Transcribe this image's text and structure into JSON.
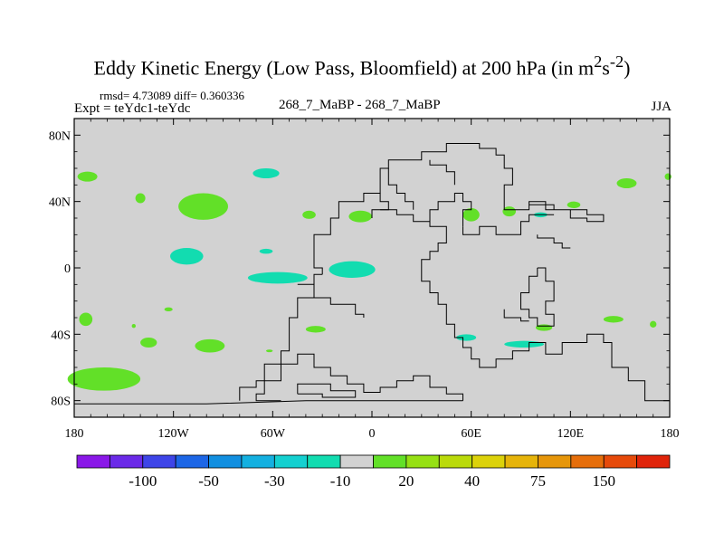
{
  "chart_data": {
    "type": "heatmap",
    "title": "Eddy Kinetic Energy (Low Pass, Bloomfield) at 200 hPa (in m",
    "title_units": {
      "sup1": "2",
      "mid": "s",
      "sup2": "-2",
      "close": ")"
    },
    "stats_line": "rmsd= 4.73089 diff= 0.360336",
    "expt_label": "Expt = teYdc1-teYdc",
    "center_label": "268_7_MaBP - 268_7_MaBP",
    "season": "JJA",
    "x_ticks": [
      {
        "value": -180,
        "label": "180"
      },
      {
        "value": -120,
        "label": "120W"
      },
      {
        "value": -60,
        "label": "60W"
      },
      {
        "value": 0,
        "label": "0"
      },
      {
        "value": 60,
        "label": "60E"
      },
      {
        "value": 120,
        "label": "120E"
      },
      {
        "value": 180,
        "label": "180"
      }
    ],
    "y_ticks": [
      {
        "value": 80,
        "label": "80N"
      },
      {
        "value": 40,
        "label": "40N"
      },
      {
        "value": 0,
        "label": "0"
      },
      {
        "value": -40,
        "label": "40S"
      },
      {
        "value": -80,
        "label": "80S"
      }
    ],
    "xlim": [
      -180,
      180
    ],
    "ylim": [
      -90,
      90
    ],
    "background_color": "#d2d2d2",
    "colorbar": {
      "colors": [
        "#8a18e8",
        "#6b2ae8",
        "#3e45e8",
        "#1d66e6",
        "#128fe0",
        "#14b0e0",
        "#14d0d0",
        "#12dcb0",
        "#d2d2d2",
        "#62e028",
        "#96e014",
        "#bada0a",
        "#dcd20a",
        "#e6b40a",
        "#e6960a",
        "#e66e0a",
        "#e64a0a",
        "#e0240a"
      ],
      "labels": [
        {
          "boundary": 2,
          "label": "-100"
        },
        {
          "boundary": 4,
          "label": "-50"
        },
        {
          "boundary": 6,
          "label": "-30"
        },
        {
          "boundary": 8,
          "label": "-10"
        },
        {
          "boundary": 10,
          "label": "20"
        },
        {
          "boundary": 12,
          "label": "40"
        },
        {
          "boundary": 14,
          "label": "75"
        },
        {
          "boundary": 16,
          "label": "150"
        }
      ]
    },
    "anomaly_patches": [
      {
        "lon": -172,
        "lat": 55,
        "rlon": 6,
        "rlat": 3,
        "color": "#62e028"
      },
      {
        "lon": -140,
        "lat": 42,
        "rlon": 3,
        "rlat": 3,
        "color": "#62e028"
      },
      {
        "lon": -102,
        "lat": 37,
        "rlon": 15,
        "rlat": 8,
        "color": "#62e028"
      },
      {
        "lon": -64,
        "lat": 57,
        "rlon": 8,
        "rlat": 3,
        "color": "#12dcb0"
      },
      {
        "lon": -38,
        "lat": 32,
        "rlon": 4,
        "rlat": 2.5,
        "color": "#62e028"
      },
      {
        "lon": -7,
        "lat": 31,
        "rlon": 7,
        "rlat": 3.5,
        "color": "#62e028"
      },
      {
        "lon": -112,
        "lat": 7,
        "rlon": 10,
        "rlat": 5,
        "color": "#12dcb0"
      },
      {
        "lon": -64,
        "lat": 10,
        "rlon": 4,
        "rlat": 1.5,
        "color": "#12dcb0"
      },
      {
        "lon": -57,
        "lat": -6,
        "rlon": 18,
        "rlat": 3.5,
        "color": "#12dcb0"
      },
      {
        "lon": -12,
        "lat": -1,
        "rlon": 14,
        "rlat": 5,
        "color": "#12dcb0"
      },
      {
        "lon": -173,
        "lat": -31,
        "rlon": 4,
        "rlat": 4,
        "color": "#62e028"
      },
      {
        "lon": -135,
        "lat": -45,
        "rlon": 5,
        "rlat": 3,
        "color": "#62e028"
      },
      {
        "lon": -98,
        "lat": -47,
        "rlon": 9,
        "rlat": 4,
        "color": "#62e028"
      },
      {
        "lon": -123,
        "lat": -25,
        "rlon": 2.5,
        "rlat": 1.2,
        "color": "#62e028"
      },
      {
        "lon": -144,
        "lat": -35,
        "rlon": 1.2,
        "rlat": 1.2,
        "color": "#62e028"
      },
      {
        "lon": -162,
        "lat": -67,
        "rlon": 22,
        "rlat": 7,
        "color": "#62e028"
      },
      {
        "lon": -34,
        "lat": -37,
        "rlon": 6,
        "rlat": 2,
        "color": "#62e028"
      },
      {
        "lon": -62,
        "lat": -50,
        "rlon": 2,
        "rlat": 0.8,
        "color": "#62e028"
      },
      {
        "lon": 57,
        "lat": -42,
        "rlon": 6,
        "rlat": 2,
        "color": "#12dcb0"
      },
      {
        "lon": 92,
        "lat": -46,
        "rlon": 12,
        "rlat": 2,
        "color": "#12dcb0"
      },
      {
        "lon": 104,
        "lat": -36,
        "rlon": 5,
        "rlat": 2,
        "color": "#62e028"
      },
      {
        "lon": 60,
        "lat": 32,
        "rlon": 5,
        "rlat": 4,
        "color": "#62e028"
      },
      {
        "lon": 83,
        "lat": 34,
        "rlon": 4,
        "rlat": 3,
        "color": "#62e028"
      },
      {
        "lon": 102,
        "lat": 32,
        "rlon": 4,
        "rlat": 1.5,
        "color": "#12dcb0"
      },
      {
        "lon": 122,
        "lat": 38,
        "rlon": 4,
        "rlat": 2,
        "color": "#62e028"
      },
      {
        "lon": 146,
        "lat": -31,
        "rlon": 6,
        "rlat": 2,
        "color": "#62e028"
      },
      {
        "lon": 170,
        "lat": -34,
        "rlon": 2,
        "rlat": 2,
        "color": "#62e028"
      },
      {
        "lon": 154,
        "lat": 51,
        "rlon": 6,
        "rlat": 3,
        "color": "#62e028"
      },
      {
        "lon": 179,
        "lat": 55,
        "rlon": 2,
        "rlat": 2,
        "color": "#62e028"
      }
    ],
    "outlines": [
      [
        [
          -80,
          -80
        ],
        [
          -80,
          -72
        ],
        [
          -70,
          -72
        ],
        [
          -70,
          -68
        ],
        [
          -55,
          -68
        ],
        [
          -55,
          -58
        ],
        [
          -45,
          -58
        ],
        [
          -45,
          -52
        ],
        [
          -35,
          -52
        ],
        [
          -35,
          -60
        ],
        [
          -25,
          -60
        ],
        [
          -25,
          -65
        ],
        [
          -15,
          -65
        ],
        [
          -15,
          -70
        ],
        [
          -5,
          -70
        ],
        [
          -5,
          -75
        ],
        [
          5,
          -75
        ],
        [
          5,
          -72
        ],
        [
          15,
          -72
        ],
        [
          15,
          -68
        ],
        [
          25,
          -68
        ],
        [
          25,
          -65
        ],
        [
          35,
          -65
        ],
        [
          35,
          -72
        ],
        [
          45,
          -72
        ],
        [
          45,
          -76
        ],
        [
          55,
          -76
        ],
        [
          55,
          -80
        ]
      ],
      [
        [
          -180,
          -82
        ],
        [
          -100,
          -82
        ],
        [
          -40,
          -80
        ],
        [
          0,
          -80
        ],
        [
          55,
          -80
        ]
      ],
      [
        [
          -45,
          -76
        ],
        [
          -45,
          -70
        ],
        [
          -25,
          -70
        ],
        [
          -25,
          -74
        ],
        [
          -10,
          -74
        ],
        [
          -10,
          -78
        ],
        [
          -30,
          -78
        ],
        [
          -30,
          -76
        ],
        [
          -45,
          -76
        ]
      ],
      [
        [
          -30,
          -4
        ],
        [
          -35,
          -4
        ],
        [
          -35,
          -18
        ],
        [
          -45,
          -18
        ],
        [
          -45,
          -30
        ],
        [
          -50,
          -30
        ],
        [
          -50,
          -50
        ],
        [
          -55,
          -50
        ],
        [
          -55,
          -58
        ],
        [
          -65,
          -58
        ],
        [
          -65,
          -76
        ],
        [
          -70,
          -76
        ],
        [
          -70,
          -80
        ],
        [
          -65,
          -80
        ],
        [
          -55,
          -80
        ]
      ],
      [
        [
          -45,
          -10
        ],
        [
          -35,
          -10
        ],
        [
          -35,
          -18
        ],
        [
          -25,
          -18
        ],
        [
          -25,
          -22
        ],
        [
          -10,
          -22
        ],
        [
          -10,
          -28
        ],
        [
          -5,
          -28
        ],
        [
          -5,
          -30
        ]
      ],
      [
        [
          -30,
          -4
        ],
        [
          -30,
          0
        ],
        [
          -35,
          0
        ],
        [
          -35,
          20
        ],
        [
          -25,
          20
        ],
        [
          -25,
          30
        ],
        [
          -20,
          30
        ],
        [
          -20,
          40
        ],
        [
          -5,
          40
        ],
        [
          -5,
          45
        ],
        [
          5,
          45
        ],
        [
          5,
          40
        ],
        [
          10,
          40
        ],
        [
          10,
          35
        ],
        [
          0,
          35
        ],
        [
          0,
          30
        ]
      ],
      [
        [
          5,
          35
        ],
        [
          15,
          35
        ],
        [
          15,
          32
        ],
        [
          25,
          32
        ],
        [
          25,
          28
        ],
        [
          35,
          28
        ],
        [
          35,
          25
        ],
        [
          45,
          25
        ],
        [
          45,
          15
        ],
        [
          40,
          15
        ],
        [
          40,
          10
        ],
        [
          35,
          10
        ],
        [
          35,
          5
        ],
        [
          30,
          5
        ],
        [
          30,
          -8
        ],
        [
          35,
          -8
        ],
        [
          35,
          -15
        ],
        [
          40,
          -15
        ],
        [
          40,
          -22
        ],
        [
          45,
          -22
        ],
        [
          45,
          -34
        ],
        [
          50,
          -34
        ],
        [
          50,
          -42
        ],
        [
          55,
          -42
        ],
        [
          55,
          -48
        ],
        [
          60,
          -48
        ],
        [
          60,
          -55
        ],
        [
          65,
          -55
        ],
        [
          65,
          -60
        ],
        [
          75,
          -60
        ],
        [
          75,
          -55
        ],
        [
          85,
          -55
        ],
        [
          85,
          -50
        ],
        [
          95,
          -50
        ],
        [
          95,
          -45
        ],
        [
          105,
          -45
        ],
        [
          105,
          -52
        ],
        [
          115,
          -52
        ],
        [
          115,
          -45
        ],
        [
          130,
          -45
        ],
        [
          130,
          -40
        ],
        [
          140,
          -40
        ],
        [
          140,
          -45
        ],
        [
          145,
          -45
        ],
        [
          145,
          -60
        ],
        [
          155,
          -60
        ],
        [
          155,
          -68
        ],
        [
          165,
          -68
        ],
        [
          165,
          -80
        ],
        [
          180,
          -80
        ]
      ],
      [
        [
          5,
          45
        ],
        [
          5,
          60
        ],
        [
          10,
          60
        ],
        [
          10,
          65
        ],
        [
          30,
          65
        ],
        [
          30,
          70
        ],
        [
          45,
          70
        ],
        [
          45,
          75
        ],
        [
          65,
          75
        ],
        [
          65,
          72
        ],
        [
          75,
          72
        ],
        [
          75,
          68
        ],
        [
          80,
          68
        ],
        [
          80,
          60
        ],
        [
          85,
          60
        ],
        [
          85,
          50
        ],
        [
          80,
          50
        ],
        [
          80,
          35
        ],
        [
          95,
          35
        ],
        [
          95,
          38
        ],
        [
          110,
          38
        ],
        [
          110,
          35
        ],
        [
          130,
          35
        ],
        [
          130,
          32
        ],
        [
          140,
          32
        ],
        [
          140,
          28
        ],
        [
          130,
          28
        ],
        [
          130,
          30
        ],
        [
          120,
          30
        ],
        [
          120,
          35
        ],
        [
          105,
          35
        ],
        [
          105,
          40
        ],
        [
          95,
          40
        ],
        [
          95,
          35
        ]
      ],
      [
        [
          55,
          25
        ],
        [
          55,
          20
        ],
        [
          65,
          20
        ],
        [
          65,
          25
        ],
        [
          75,
          25
        ],
        [
          75,
          20
        ],
        [
          90,
          20
        ],
        [
          90,
          28
        ],
        [
          95,
          28
        ],
        [
          95,
          32
        ],
        [
          110,
          32
        ]
      ],
      [
        [
          100,
          20
        ],
        [
          100,
          18
        ],
        [
          110,
          18
        ],
        [
          110,
          15
        ],
        [
          115,
          15
        ],
        [
          115,
          12
        ],
        [
          120,
          12
        ]
      ],
      [
        [
          100,
          0
        ],
        [
          100,
          -5
        ],
        [
          95,
          -5
        ],
        [
          95,
          -15
        ],
        [
          90,
          -15
        ],
        [
          90,
          -25
        ],
        [
          95,
          -25
        ],
        [
          95,
          -30
        ],
        [
          100,
          -30
        ],
        [
          100,
          -35
        ],
        [
          110,
          -35
        ],
        [
          110,
          -28
        ],
        [
          105,
          -28
        ],
        [
          105,
          -20
        ],
        [
          110,
          -20
        ],
        [
          110,
          -8
        ],
        [
          105,
          -8
        ],
        [
          105,
          0
        ],
        [
          100,
          0
        ]
      ],
      [
        [
          80,
          -25
        ],
        [
          80,
          -30
        ],
        [
          90,
          -30
        ],
        [
          90,
          -32
        ],
        [
          95,
          -32
        ]
      ],
      [
        [
          35,
          28
        ],
        [
          35,
          35
        ],
        [
          40,
          35
        ],
        [
          40,
          40
        ],
        [
          50,
          40
        ],
        [
          50,
          45
        ],
        [
          55,
          45
        ],
        [
          55,
          40
        ],
        [
          60,
          40
        ],
        [
          60,
          35
        ],
        [
          55,
          35
        ],
        [
          55,
          25
        ]
      ],
      [
        [
          10,
          60
        ],
        [
          10,
          50
        ],
        [
          15,
          50
        ],
        [
          15,
          45
        ],
        [
          20,
          45
        ],
        [
          20,
          40
        ],
        [
          25,
          40
        ],
        [
          25,
          35
        ]
      ],
      [
        [
          35,
          65
        ],
        [
          35,
          62
        ],
        [
          45,
          62
        ],
        [
          45,
          58
        ],
        [
          50,
          58
        ],
        [
          50,
          50
        ]
      ]
    ]
  }
}
